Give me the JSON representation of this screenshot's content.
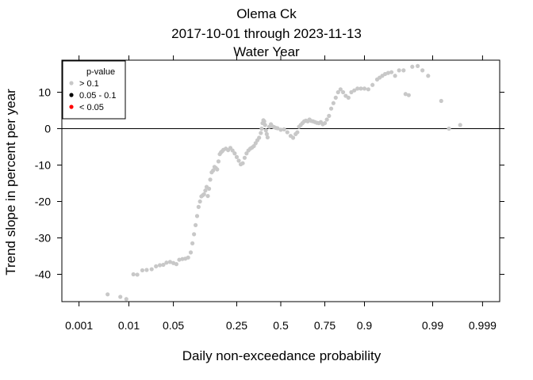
{
  "header": {
    "title": "Olema Ck",
    "subtitle": "2017-10-01 through 2023-11-13",
    "season": "Water Year"
  },
  "chart_data": {
    "type": "scatter",
    "title": "Olema Ck",
    "subtitle": "2017-10-01 through 2023-11-13 / Water Year",
    "xlabel": "Daily non-exceedance probability",
    "ylabel": "Trend slope in percent per year",
    "x_scale": "normal-probability",
    "x_ticks": [
      0.001,
      0.01,
      0.05,
      0.25,
      0.5,
      0.75,
      0.9,
      0.99,
      0.999
    ],
    "x_tick_labels": [
      "0.001",
      "0.01",
      "0.05",
      "0.25",
      "0.5",
      "0.75",
      "0.9",
      "0.99",
      "0.999"
    ],
    "y_ticks": [
      -40,
      -30,
      -20,
      -10,
      0,
      10
    ],
    "y_tick_labels": [
      "-40",
      "-30",
      "-20",
      "-10",
      "0",
      "10"
    ],
    "xlim": [
      0.0004,
      0.9996
    ],
    "ylim": [
      -47.5,
      18.8
    ],
    "reference_line_y": 0,
    "legend": {
      "title": "p-value",
      "placement": "top-left",
      "entries": [
        {
          "label": "> 0.1",
          "color": "#c8c8c8"
        },
        {
          "label": "0.05 - 0.1",
          "color": "#000000"
        },
        {
          "label": "< 0.05",
          "color": "#ff0000"
        }
      ]
    },
    "series": [
      {
        "name": "> 0.1",
        "color": "#c8c8c8",
        "points": [
          [
            0.004,
            -45.5
          ],
          [
            0.007,
            -46.2
          ],
          [
            0.009,
            -46.8
          ],
          [
            0.012,
            -40.0
          ],
          [
            0.014,
            -40.1
          ],
          [
            0.017,
            -38.9
          ],
          [
            0.02,
            -38.8
          ],
          [
            0.024,
            -38.6
          ],
          [
            0.028,
            -37.8
          ],
          [
            0.032,
            -37.5
          ],
          [
            0.036,
            -37.4
          ],
          [
            0.04,
            -36.8
          ],
          [
            0.045,
            -36.6
          ],
          [
            0.05,
            -36.9
          ],
          [
            0.055,
            -37.2
          ],
          [
            0.06,
            -36.0
          ],
          [
            0.066,
            -35.8
          ],
          [
            0.072,
            -35.7
          ],
          [
            0.078,
            -35.4
          ],
          [
            0.084,
            -34.0
          ],
          [
            0.088,
            -31.5
          ],
          [
            0.092,
            -29.0
          ],
          [
            0.096,
            -26.5
          ],
          [
            0.1,
            -24.0
          ],
          [
            0.104,
            -21.5
          ],
          [
            0.108,
            -20.0
          ],
          [
            0.112,
            -18.6
          ],
          [
            0.116,
            -18.3
          ],
          [
            0.12,
            -18.0
          ],
          [
            0.124,
            -17.0
          ],
          [
            0.128,
            -16.0
          ],
          [
            0.132,
            -18.5
          ],
          [
            0.136,
            -16.5
          ],
          [
            0.14,
            -14.0
          ],
          [
            0.145,
            -12.0
          ],
          [
            0.15,
            -11.5
          ],
          [
            0.155,
            -10.5
          ],
          [
            0.16,
            -10.8
          ],
          [
            0.165,
            -11.2
          ],
          [
            0.17,
            -9.0
          ],
          [
            0.175,
            -7.0
          ],
          [
            0.18,
            -6.5
          ],
          [
            0.185,
            -6.2
          ],
          [
            0.19,
            -5.8
          ],
          [
            0.2,
            -5.5
          ],
          [
            0.21,
            -5.9
          ],
          [
            0.22,
            -5.3
          ],
          [
            0.23,
            -6.0
          ],
          [
            0.24,
            -6.8
          ],
          [
            0.25,
            -7.8
          ],
          [
            0.26,
            -8.8
          ],
          [
            0.27,
            -9.8
          ],
          [
            0.28,
            -9.5
          ],
          [
            0.29,
            -8.0
          ],
          [
            0.3,
            -6.8
          ],
          [
            0.31,
            -6.0
          ],
          [
            0.32,
            -5.5
          ],
          [
            0.33,
            -5.2
          ],
          [
            0.34,
            -4.8
          ],
          [
            0.35,
            -4.0
          ],
          [
            0.36,
            -3.2
          ],
          [
            0.37,
            -2.5
          ],
          [
            0.38,
            -1.2
          ],
          [
            0.385,
            0.0
          ],
          [
            0.39,
            1.5
          ],
          [
            0.395,
            2.3
          ],
          [
            0.4,
            2.0
          ],
          [
            0.405,
            1.0
          ],
          [
            0.41,
            -0.5
          ],
          [
            0.415,
            -1.5
          ],
          [
            0.42,
            -2.4
          ],
          [
            0.43,
            0.5
          ],
          [
            0.44,
            1.2
          ],
          [
            0.45,
            0.6
          ],
          [
            0.46,
            0.4
          ],
          [
            0.47,
            0.2
          ],
          [
            0.48,
            0.1
          ],
          [
            0.5,
            -0.3
          ],
          [
            0.52,
            -0.2
          ],
          [
            0.54,
            -1.0
          ],
          [
            0.56,
            -2.0
          ],
          [
            0.575,
            -2.5
          ],
          [
            0.59,
            -1.5
          ],
          [
            0.6,
            -1.0
          ],
          [
            0.61,
            0.5
          ],
          [
            0.62,
            1.0
          ],
          [
            0.63,
            1.5
          ],
          [
            0.64,
            2.0
          ],
          [
            0.65,
            2.2
          ],
          [
            0.66,
            2.0
          ],
          [
            0.67,
            2.5
          ],
          [
            0.68,
            2.1
          ],
          [
            0.69,
            2.0
          ],
          [
            0.7,
            1.8
          ],
          [
            0.71,
            1.6
          ],
          [
            0.72,
            1.5
          ],
          [
            0.73,
            1.8
          ],
          [
            0.74,
            1.2
          ],
          [
            0.75,
            1.5
          ],
          [
            0.76,
            2.5
          ],
          [
            0.77,
            3.5
          ],
          [
            0.78,
            5.5
          ],
          [
            0.79,
            7.0
          ],
          [
            0.8,
            8.5
          ],
          [
            0.81,
            10.0
          ],
          [
            0.82,
            10.8
          ],
          [
            0.83,
            10.0
          ],
          [
            0.84,
            9.0
          ],
          [
            0.85,
            8.5
          ],
          [
            0.86,
            10.0
          ],
          [
            0.87,
            10.5
          ],
          [
            0.88,
            11.0
          ],
          [
            0.89,
            11.0
          ],
          [
            0.9,
            11.0
          ],
          [
            0.91,
            10.8
          ],
          [
            0.92,
            12.0
          ],
          [
            0.93,
            13.5
          ],
          [
            0.935,
            14.0
          ],
          [
            0.94,
            14.5
          ],
          [
            0.945,
            15.0
          ],
          [
            0.95,
            15.3
          ],
          [
            0.955,
            15.5
          ],
          [
            0.96,
            14.5
          ],
          [
            0.965,
            16.0
          ],
          [
            0.97,
            16.0
          ],
          [
            0.972,
            9.5
          ],
          [
            0.975,
            9.2
          ],
          [
            0.978,
            17.0
          ],
          [
            0.982,
            17.2
          ],
          [
            0.985,
            16.0
          ],
          [
            0.988,
            14.5
          ],
          [
            0.993,
            7.6
          ],
          [
            0.995,
            0.0
          ],
          [
            0.997,
            1.0
          ]
        ]
      },
      {
        "name": "0.05 - 0.1",
        "color": "#000000",
        "points": []
      },
      {
        "name": "< 0.05",
        "color": "#ff0000",
        "points": []
      }
    ],
    "grid": false
  }
}
